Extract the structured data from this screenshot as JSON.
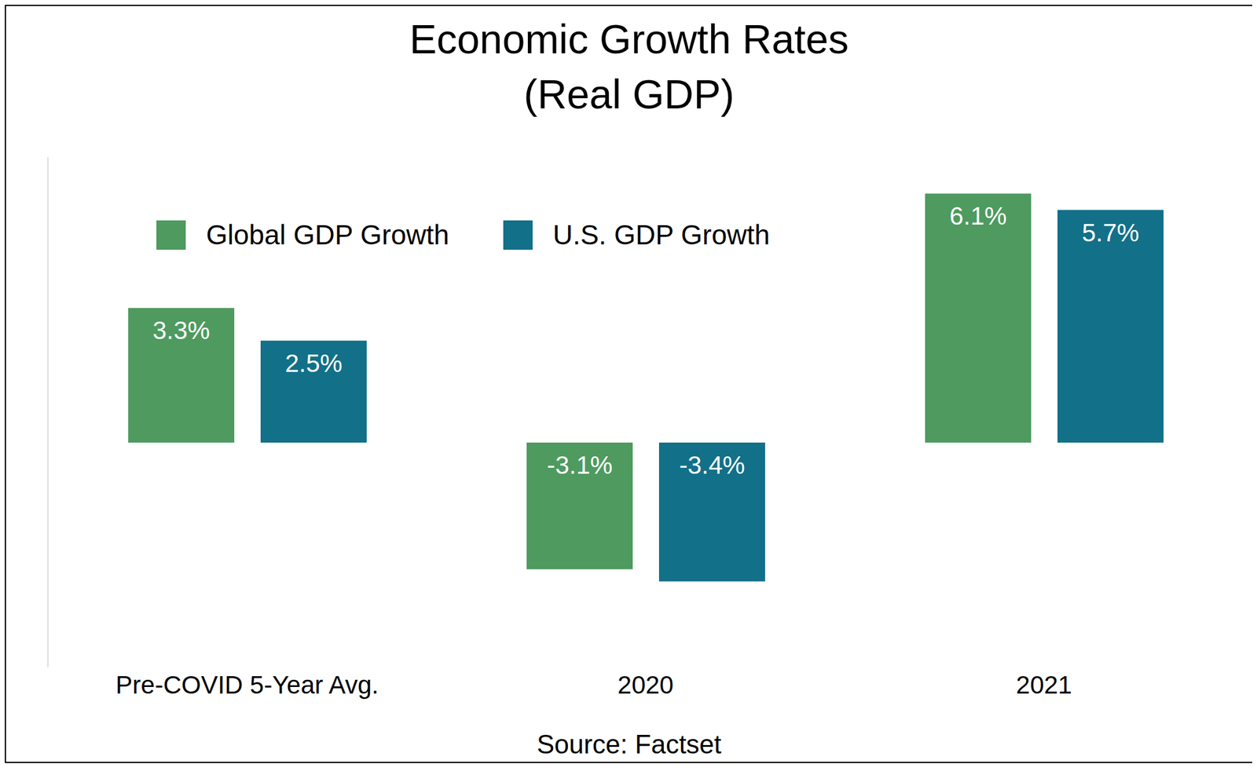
{
  "chart_data": {
    "type": "bar",
    "title": "Economic Growth Rates",
    "subtitle": "(Real GDP)",
    "source": "Source: Factset",
    "categories": [
      "Pre-COVID 5-Year Avg.",
      "2020",
      "2021"
    ],
    "series": [
      {
        "name": "Global GDP Growth",
        "color": "#4e9a5f",
        "values": [
          3.3,
          -3.1,
          6.1
        ],
        "value_labels": [
          "3.3%",
          "-3.1%",
          "6.1%"
        ]
      },
      {
        "name": "U.S. GDP Growth",
        "color": "#127089",
        "values": [
          2.5,
          -3.4,
          5.7
        ],
        "value_labels": [
          "2.5%",
          "-3.4%",
          "5.7%"
        ]
      }
    ],
    "ylim": [
      -5.5,
      7
    ],
    "data_labels": true,
    "tick_labels": "x",
    "legend": "upper left",
    "grid": false
  }
}
